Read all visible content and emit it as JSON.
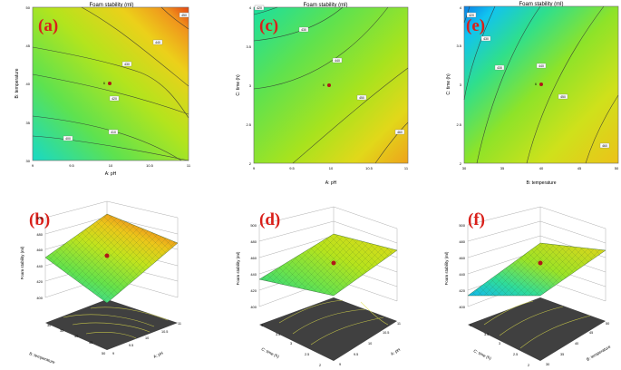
{
  "chart_data": [
    {
      "id": "a",
      "type": "contour",
      "panel_label": "(a)",
      "title": "Foam stability (ml)",
      "xlabel": "A: pH",
      "ylabel": "B: temperature",
      "xlim": [
        9,
        11
      ],
      "ylim": [
        30,
        50
      ],
      "xticks": [
        "9",
        "9.5",
        "10",
        "10.5",
        "11"
      ],
      "yticks": [
        "30",
        "35",
        "40",
        "45",
        "50"
      ],
      "design_point": [
        10,
        40
      ],
      "contour_labels": [
        "400",
        "410",
        "420",
        "430",
        "440",
        "450"
      ],
      "colormap": [
        "#00c7ff",
        "#19e3a6",
        "#63e651",
        "#b5e61b",
        "#ead61a",
        "#f09a1c",
        "#e64a12"
      ]
    },
    {
      "id": "c",
      "type": "contour",
      "panel_label": "(c)",
      "title": "Foam stability (ml)",
      "xlabel": "A: pH",
      "ylabel": "C: time (h)",
      "xlim": [
        9,
        11
      ],
      "ylim": [
        2,
        4
      ],
      "xticks": [
        "9",
        "9.5",
        "10",
        "10.5",
        "11"
      ],
      "yticks": [
        "2",
        "2.5",
        "3",
        "3.5",
        "4"
      ],
      "design_point": [
        10,
        3
      ],
      "contour_labels": [
        "420",
        "430",
        "440",
        "450",
        "460"
      ]
    },
    {
      "id": "e",
      "type": "contour",
      "panel_label": "(e)",
      "title": "Foam stability (ml)",
      "xlabel": "B: temperature",
      "ylabel": "C: time (h)",
      "xlim": [
        30,
        50
      ],
      "ylim": [
        2,
        4
      ],
      "xticks": [
        "30",
        "35",
        "40",
        "45",
        "50"
      ],
      "yticks": [
        "2",
        "2.5",
        "3",
        "3.5",
        "4"
      ],
      "design_point": [
        40,
        3
      ],
      "contour_labels": [
        "420",
        "430",
        "440",
        "450",
        "460"
      ]
    },
    {
      "id": "b",
      "type": "surface3d",
      "panel_label": "(b)",
      "zlabel": "Foam stability (ml)",
      "xlabel": "B: temperature",
      "ylabel": "A: pH",
      "zlim": [
        400,
        500
      ],
      "zticks": [
        "400",
        "420",
        "440",
        "460",
        "480",
        "500"
      ],
      "xticks": [
        "30",
        "35",
        "40",
        "45",
        "50"
      ],
      "yticks": [
        "9",
        "9.5",
        "10",
        "10.5",
        "11"
      ]
    },
    {
      "id": "d",
      "type": "surface3d",
      "panel_label": "(d)",
      "zlabel": "Foam stability (ml)",
      "xlabel": "C: time (h)",
      "ylabel": "A: pH",
      "zlim": [
        400,
        500
      ],
      "zticks": [
        "400",
        "420",
        "440",
        "460",
        "480",
        "500"
      ],
      "xticks": [
        "2",
        "2.5",
        "3",
        "3.5",
        "4"
      ],
      "yticks": [
        "9",
        "9.5",
        "10",
        "10.5",
        "11"
      ]
    },
    {
      "id": "f",
      "type": "surface3d",
      "panel_label": "(f)",
      "zlabel": "Foam stability (ml)",
      "xlabel": "C: time (h)",
      "ylabel": "B: temperature",
      "zlim": [
        400,
        500
      ],
      "zticks": [
        "400",
        "420",
        "440",
        "460",
        "480",
        "500"
      ],
      "xticks": [
        "2",
        "2.5",
        "3",
        "3.5",
        "4"
      ],
      "yticks": [
        "30",
        "35",
        "40",
        "45",
        "50"
      ]
    }
  ]
}
